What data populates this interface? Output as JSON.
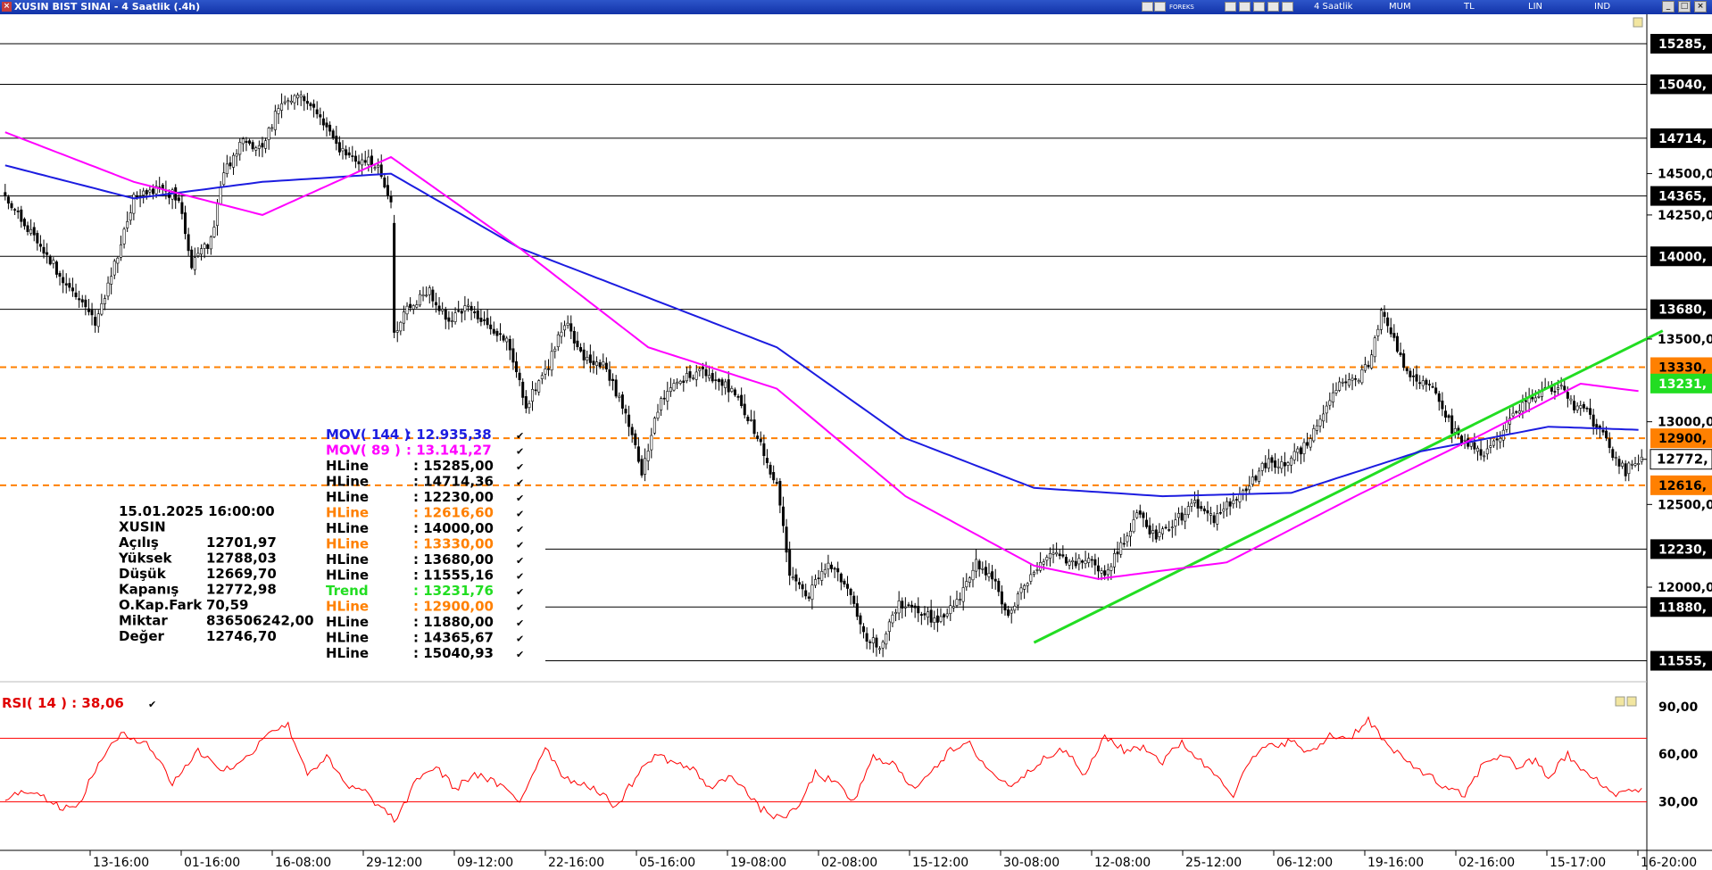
{
  "window": {
    "title": "XUSIN BIST SINAI - 4 Saatlik (.4h)",
    "toolbar_items": [
      "4 Saatlik",
      "MUM",
      "TL",
      "LIN",
      "IND"
    ],
    "brand": "FOREKS"
  },
  "chart_data": {
    "type": "candlestick",
    "symbol": "XUSIN",
    "interval": "4 Saatlik",
    "price_scale": {
      "range": [
        11450,
        15420
      ],
      "ticks": [
        11500,
        11750,
        12000,
        12250,
        12500,
        12750,
        13000,
        13250,
        13500,
        13750,
        14000,
        14250,
        14500,
        14750,
        15000
      ],
      "tick_labels_visible": [
        "12000,0",
        "12500,0",
        "13000,0",
        "13500,0",
        "14250,0",
        "14500,0"
      ]
    },
    "x_labels": [
      "13-16:00",
      "01-16:00",
      "16-08:00",
      "29-12:00",
      "09-12:00",
      "22-16:00",
      "05-16:00",
      "19-08:00",
      "02-08:00",
      "15-12:00",
      "30-08:00",
      "12-08:00",
      "25-12:00",
      "06-12:00",
      "19-16:00",
      "02-16:00",
      "15-17:00",
      "16-20:00"
    ],
    "close_anchors": [
      [
        0,
        14350
      ],
      [
        10,
        14100
      ],
      [
        20,
        13800
      ],
      [
        28,
        13600
      ],
      [
        34,
        13950
      ],
      [
        40,
        14350
      ],
      [
        48,
        14420
      ],
      [
        54,
        14350
      ],
      [
        58,
        13950
      ],
      [
        64,
        14100
      ],
      [
        68,
        14500
      ],
      [
        74,
        14700
      ],
      [
        80,
        14650
      ],
      [
        86,
        14950
      ],
      [
        92,
        14980
      ],
      [
        98,
        14850
      ],
      [
        104,
        14650
      ],
      [
        110,
        14580
      ],
      [
        116,
        14560
      ],
      [
        120,
        14300
      ],
      [
        121,
        13550
      ],
      [
        126,
        13700
      ],
      [
        132,
        13780
      ],
      [
        138,
        13600
      ],
      [
        144,
        13700
      ],
      [
        150,
        13600
      ],
      [
        156,
        13480
      ],
      [
        162,
        13100
      ],
      [
        168,
        13300
      ],
      [
        174,
        13600
      ],
      [
        180,
        13400
      ],
      [
        186,
        13350
      ],
      [
        192,
        13100
      ],
      [
        198,
        12700
      ],
      [
        204,
        13150
      ],
      [
        210,
        13250
      ],
      [
        216,
        13300
      ],
      [
        222,
        13250
      ],
      [
        228,
        13150
      ],
      [
        234,
        12900
      ],
      [
        240,
        12600
      ],
      [
        244,
        12100
      ],
      [
        250,
        11950
      ],
      [
        256,
        12150
      ],
      [
        262,
        12000
      ],
      [
        268,
        11700
      ],
      [
        272,
        11650
      ],
      [
        278,
        11900
      ],
      [
        284,
        11850
      ],
      [
        290,
        11800
      ],
      [
        296,
        11900
      ],
      [
        302,
        12150
      ],
      [
        308,
        12050
      ],
      [
        312,
        11800
      ],
      [
        316,
        12000
      ],
      [
        320,
        12100
      ],
      [
        326,
        12200
      ],
      [
        332,
        12150
      ],
      [
        338,
        12150
      ],
      [
        342,
        12100
      ],
      [
        346,
        12200
      ],
      [
        352,
        12450
      ],
      [
        358,
        12300
      ],
      [
        364,
        12400
      ],
      [
        370,
        12500
      ],
      [
        376,
        12400
      ],
      [
        380,
        12500
      ],
      [
        386,
        12600
      ],
      [
        392,
        12750
      ],
      [
        398,
        12750
      ],
      [
        404,
        12850
      ],
      [
        410,
        13050
      ],
      [
        416,
        13250
      ],
      [
        420,
        13250
      ],
      [
        424,
        13350
      ],
      [
        428,
        13650
      ],
      [
        432,
        13500
      ],
      [
        436,
        13300
      ],
      [
        440,
        13250
      ],
      [
        446,
        13150
      ],
      [
        450,
        12950
      ],
      [
        456,
        12850
      ],
      [
        460,
        12800
      ],
      [
        464,
        12900
      ],
      [
        468,
        13000
      ],
      [
        472,
        13100
      ],
      [
        476,
        13150
      ],
      [
        480,
        13200
      ],
      [
        484,
        13200
      ],
      [
        488,
        13100
      ],
      [
        492,
        13050
      ],
      [
        496,
        12950
      ],
      [
        500,
        12800
      ],
      [
        504,
        12700
      ],
      [
        506,
        12773
      ]
    ],
    "last_bar": {
      "date": "15.01.2025 16:00:00",
      "symbol": "XUSIN",
      "rows": [
        {
          "label": "Açılış",
          "value": "12701,97"
        },
        {
          "label": "Yüksek",
          "value": "12788,03"
        },
        {
          "label": "Düşük",
          "value": "12669,70"
        },
        {
          "label": "Kapanış",
          "value": "12772,98"
        },
        {
          "label": "O.Kap.Fark",
          "value": "70,59"
        },
        {
          "label": "Miktar",
          "value": "836506242,00"
        },
        {
          "label": "Değer",
          "value": "12746,70"
        }
      ]
    },
    "moving_averages": [
      {
        "name": "MOV( 144 )",
        "value": "12.935,38",
        "color": "#1c1ce0",
        "anchors": [
          [
            0,
            14550
          ],
          [
            40,
            14350
          ],
          [
            80,
            14450
          ],
          [
            120,
            14500
          ],
          [
            160,
            14050
          ],
          [
            200,
            13750
          ],
          [
            240,
            13450
          ],
          [
            280,
            12900
          ],
          [
            320,
            12600
          ],
          [
            360,
            12550
          ],
          [
            400,
            12570
          ],
          [
            440,
            12820
          ],
          [
            480,
            12970
          ],
          [
            510,
            12950
          ]
        ]
      },
      {
        "name": "MOV( 89 )",
        "value": "13.141,27",
        "color": "#ff00ff",
        "anchors": [
          [
            0,
            14750
          ],
          [
            40,
            14450
          ],
          [
            80,
            14250
          ],
          [
            120,
            14600
          ],
          [
            160,
            14050
          ],
          [
            200,
            13450
          ],
          [
            240,
            13200
          ],
          [
            280,
            12550
          ],
          [
            320,
            12130
          ],
          [
            340,
            12050
          ],
          [
            380,
            12150
          ],
          [
            420,
            12550
          ],
          [
            460,
            12930
          ],
          [
            490,
            13230
          ],
          [
            510,
            13180
          ]
        ]
      }
    ],
    "trend": {
      "name": "Trend",
      "value": "13231,76",
      "color": "#22dd22",
      "points": [
        [
          320,
          11665
        ],
        [
          510,
          13550
        ]
      ]
    },
    "hlines": [
      {
        "name": "HLine",
        "value": "15285,00",
        "price": 15285,
        "tag": "15285,",
        "style": "solid",
        "color": "#000000"
      },
      {
        "name": "HLine",
        "value": "14714,36",
        "price": 14714,
        "tag": "14714,",
        "style": "solid",
        "color": "#000000"
      },
      {
        "name": "HLine",
        "value": "12230,00",
        "price": 12230,
        "tag": "12230,",
        "style": "solid",
        "color": "#000000"
      },
      {
        "name": "HLine",
        "value": "12616,60",
        "price": 12616,
        "tag": "12616,",
        "style": "dash",
        "color": "#ff8000"
      },
      {
        "name": "HLine",
        "value": "14000,00",
        "price": 14000,
        "tag": "14000,",
        "style": "solid",
        "color": "#000000"
      },
      {
        "name": "HLine",
        "value": "13330,00",
        "price": 13330,
        "tag": "13330,",
        "style": "dash",
        "color": "#ff8000"
      },
      {
        "name": "HLine",
        "value": "13680,00",
        "price": 13680,
        "tag": "13680,",
        "style": "solid",
        "color": "#000000"
      },
      {
        "name": "HLine",
        "value": "11555,16",
        "price": 11555,
        "tag": "11555,",
        "style": "solid",
        "color": "#000000"
      },
      {
        "name": "Trend",
        "value": "13231,76",
        "price": 13231,
        "tag": "13231,",
        "style": "trend",
        "color": "#22dd22"
      },
      {
        "name": "HLine",
        "value": "12900,00",
        "price": 12900,
        "tag": "12900,",
        "style": "dash",
        "color": "#ff8000"
      },
      {
        "name": "HLine",
        "value": "11880,00",
        "price": 11880,
        "tag": "11880,",
        "style": "solid",
        "color": "#000000"
      },
      {
        "name": "HLine",
        "value": "14365,67",
        "price": 14365,
        "tag": "14365,",
        "style": "solid",
        "color": "#000000"
      },
      {
        "name": "HLine",
        "value": "15040,93",
        "price": 15040,
        "tag": "15040,",
        "style": "solid",
        "color": "#000000"
      }
    ],
    "last_price_tag": "12772,",
    "rsi": {
      "name": "RSI( 14 )",
      "value": "38,06",
      "color": "#ff0000",
      "range": [
        0,
        100
      ],
      "levels": [
        70,
        30
      ],
      "tick_labels": [
        "90,00",
        "60,00",
        "30,00"
      ],
      "anchors": [
        [
          0,
          32
        ],
        [
          8,
          38
        ],
        [
          16,
          28
        ],
        [
          22,
          25
        ],
        [
          30,
          58
        ],
        [
          36,
          72
        ],
        [
          44,
          68
        ],
        [
          52,
          42
        ],
        [
          60,
          62
        ],
        [
          68,
          50
        ],
        [
          74,
          55
        ],
        [
          82,
          75
        ],
        [
          88,
          78
        ],
        [
          94,
          48
        ],
        [
          100,
          58
        ],
        [
          106,
          40
        ],
        [
          112,
          36
        ],
        [
          118,
          24
        ],
        [
          122,
          18
        ],
        [
          128,
          45
        ],
        [
          134,
          52
        ],
        [
          140,
          38
        ],
        [
          146,
          48
        ],
        [
          154,
          40
        ],
        [
          160,
          30
        ],
        [
          168,
          65
        ],
        [
          174,
          45
        ],
        [
          182,
          40
        ],
        [
          190,
          27
        ],
        [
          196,
          45
        ],
        [
          202,
          60
        ],
        [
          208,
          55
        ],
        [
          214,
          50
        ],
        [
          220,
          38
        ],
        [
          226,
          48
        ],
        [
          234,
          27
        ],
        [
          240,
          20
        ],
        [
          246,
          24
        ],
        [
          252,
          48
        ],
        [
          258,
          42
        ],
        [
          264,
          30
        ],
        [
          270,
          58
        ],
        [
          276,
          55
        ],
        [
          282,
          38
        ],
        [
          288,
          50
        ],
        [
          294,
          62
        ],
        [
          300,
          66
        ],
        [
          306,
          50
        ],
        [
          312,
          40
        ],
        [
          318,
          48
        ],
        [
          324,
          60
        ],
        [
          330,
          62
        ],
        [
          336,
          46
        ],
        [
          342,
          72
        ],
        [
          348,
          62
        ],
        [
          354,
          65
        ],
        [
          360,
          55
        ],
        [
          366,
          68
        ],
        [
          372,
          55
        ],
        [
          378,
          45
        ],
        [
          382,
          35
        ],
        [
          388,
          58
        ],
        [
          394,
          66
        ],
        [
          400,
          68
        ],
        [
          406,
          60
        ],
        [
          412,
          72
        ],
        [
          418,
          70
        ],
        [
          424,
          82
        ],
        [
          430,
          65
        ],
        [
          436,
          55
        ],
        [
          442,
          48
        ],
        [
          448,
          38
        ],
        [
          454,
          34
        ],
        [
          460,
          55
        ],
        [
          466,
          60
        ],
        [
          470,
          52
        ],
        [
          476,
          56
        ],
        [
          480,
          45
        ],
        [
          486,
          60
        ],
        [
          490,
          50
        ],
        [
          494,
          45
        ],
        [
          498,
          38
        ],
        [
          502,
          35
        ],
        [
          506,
          38
        ]
      ]
    }
  }
}
